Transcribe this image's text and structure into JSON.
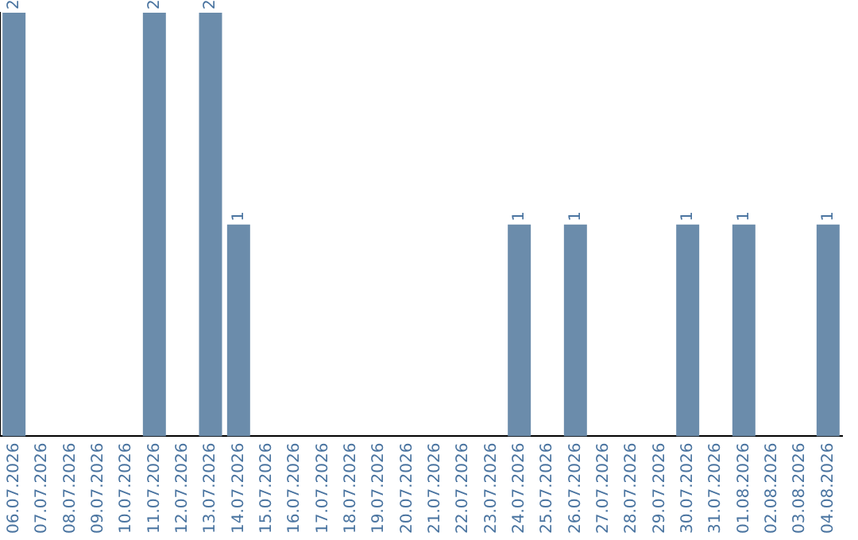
{
  "chart_data": {
    "type": "bar",
    "categories": [
      "06.07.2026",
      "07.07.2026",
      "08.07.2026",
      "09.07.2026",
      "10.07.2026",
      "11.07.2026",
      "12.07.2026",
      "13.07.2026",
      "14.07.2026",
      "15.07.2026",
      "16.07.2026",
      "17.07.2026",
      "18.07.2026",
      "19.07.2026",
      "20.07.2026",
      "21.07.2026",
      "22.07.2026",
      "23.07.2026",
      "24.07.2026",
      "25.07.2026",
      "26.07.2026",
      "27.07.2026",
      "28.07.2026",
      "29.07.2026",
      "30.07.2026",
      "31.07.2026",
      "01.08.2026",
      "02.08.2026",
      "03.08.2026",
      "04.08.2026"
    ],
    "values": [
      2,
      0,
      0,
      0,
      0,
      2,
      0,
      2,
      1,
      0,
      0,
      0,
      0,
      0,
      0,
      0,
      0,
      0,
      1,
      0,
      1,
      0,
      0,
      0,
      1,
      0,
      1,
      0,
      0,
      1
    ],
    "value_labels": [
      "2",
      null,
      null,
      null,
      null,
      "2",
      null,
      "2",
      "1",
      null,
      null,
      null,
      null,
      null,
      null,
      null,
      null,
      null,
      "1",
      null,
      "1",
      null,
      null,
      null,
      "1",
      null,
      "1",
      null,
      null,
      "1"
    ],
    "color": "#6b8cab",
    "grid": false,
    "legend": false,
    "tick_labels": "x"
  }
}
